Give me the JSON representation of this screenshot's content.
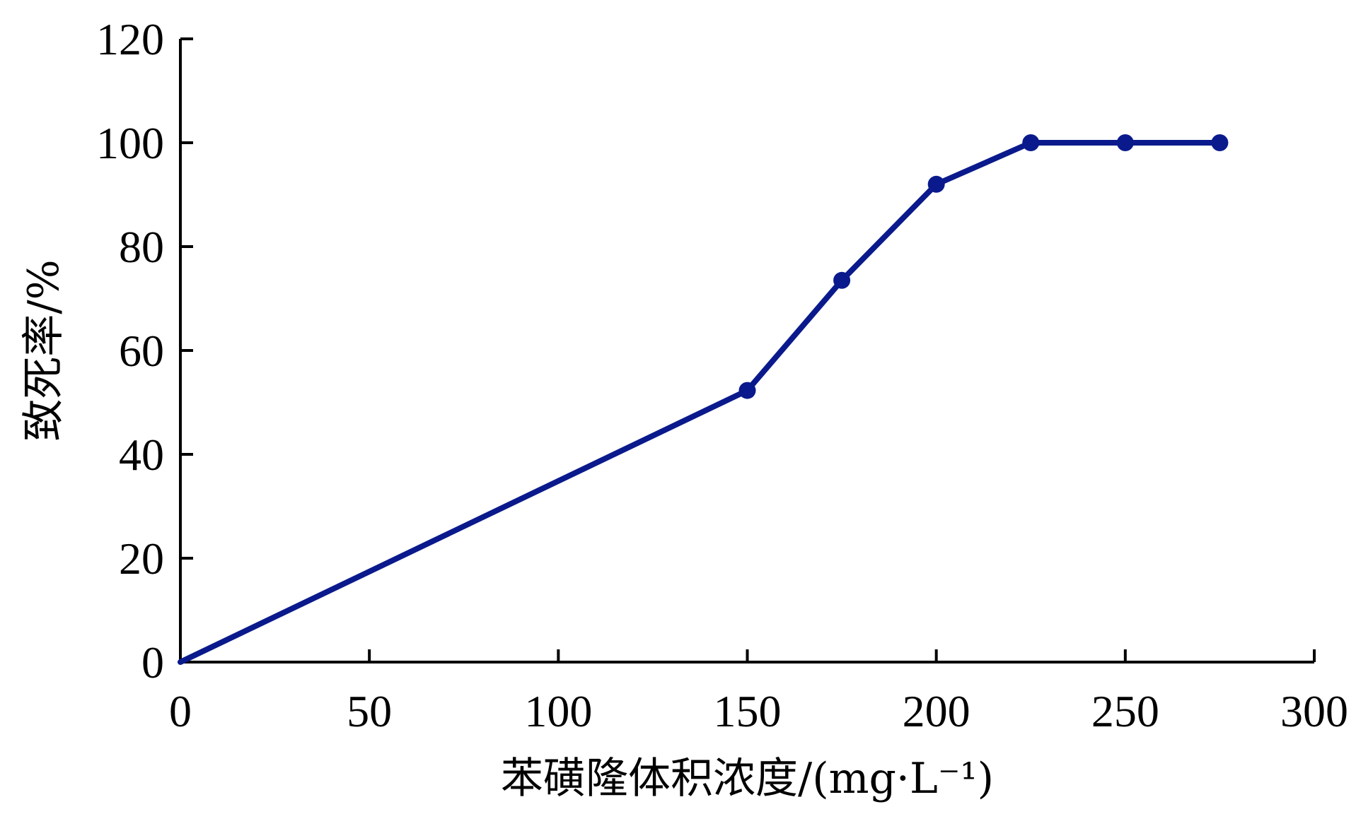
{
  "chart_data": {
    "type": "line",
    "title": "",
    "xlabel": "苯磺隆体积浓度/(mg·L⁻¹)",
    "ylabel": "致死率/%",
    "xlim": [
      0,
      300
    ],
    "ylim": [
      0,
      120
    ],
    "xticks": [
      0,
      50,
      100,
      150,
      200,
      250,
      300
    ],
    "yticks": [
      0,
      20,
      40,
      60,
      80,
      100,
      120
    ],
    "grid": false,
    "series": [
      {
        "x": [
          0,
          150,
          175,
          200,
          225,
          250,
          275
        ],
        "y": [
          0,
          52.3,
          73.5,
          92,
          100,
          100,
          100
        ],
        "color": "#0a1a8c",
        "markers_on": [
          false,
          true,
          true,
          true,
          true,
          true,
          true
        ]
      }
    ]
  }
}
